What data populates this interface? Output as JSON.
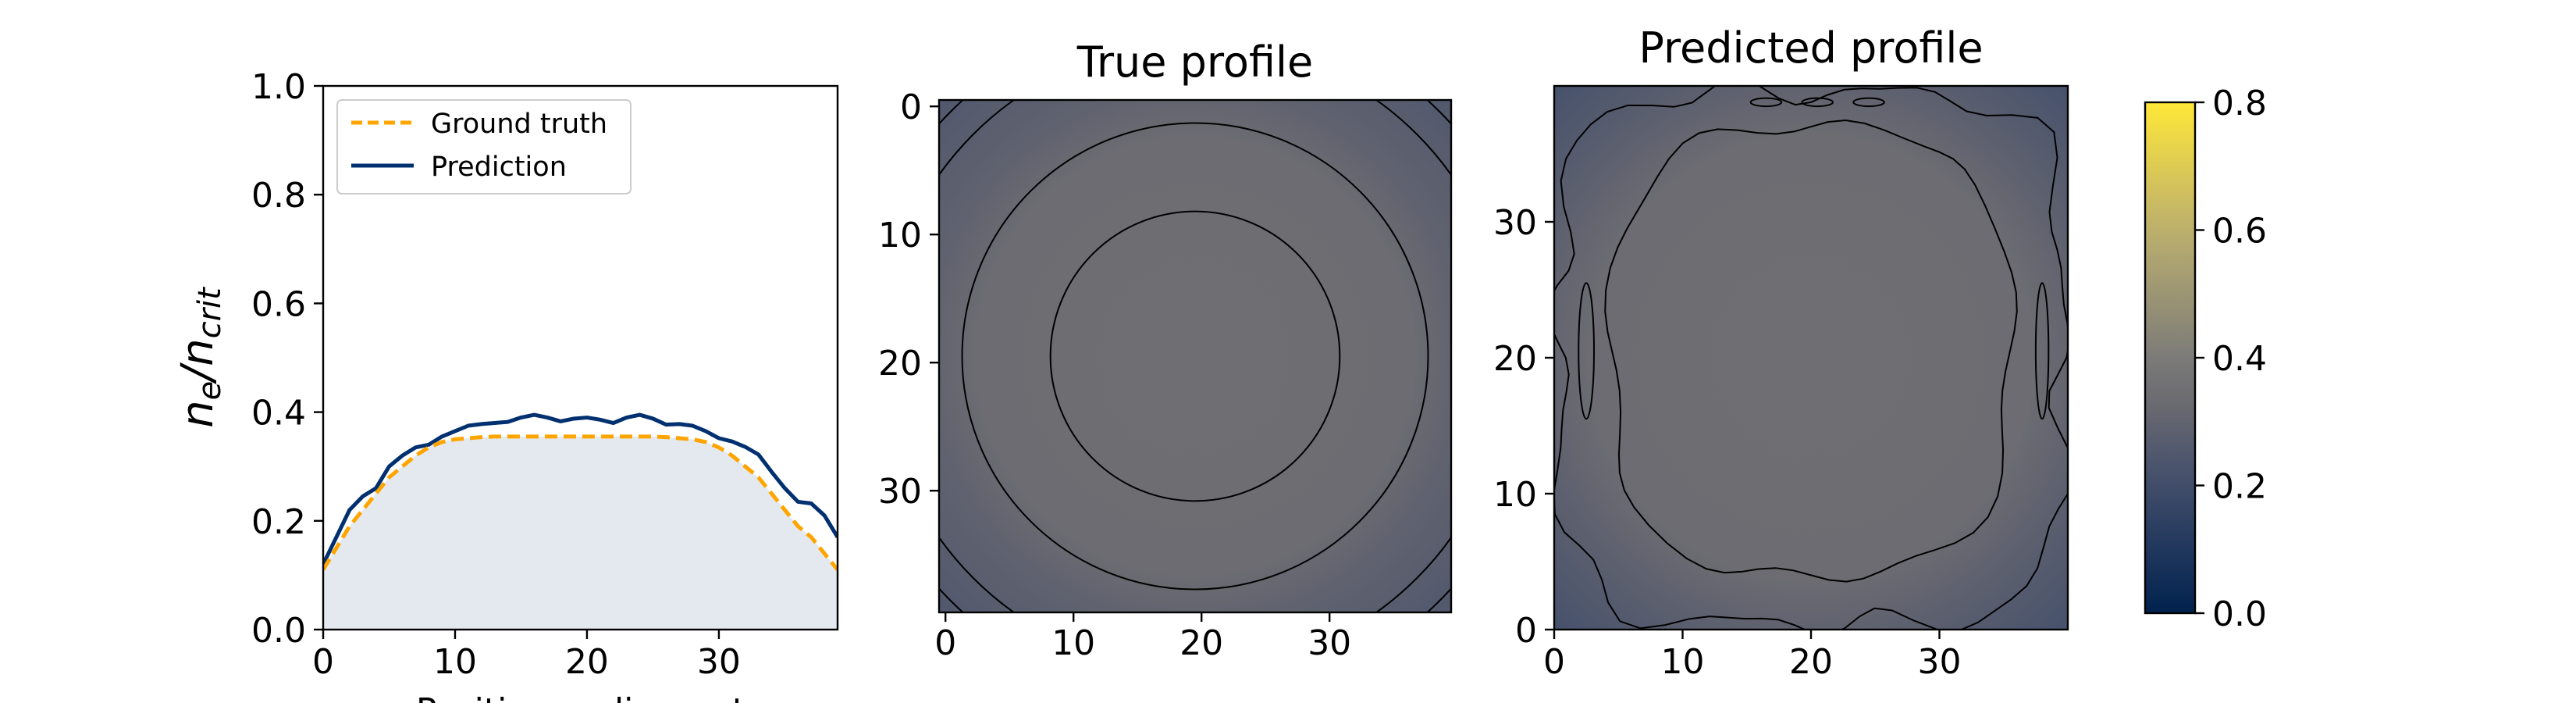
{
  "chart_data": [
    {
      "type": "area",
      "xlabel": "Position on line-out",
      "ylabel_base": "n",
      "ylabel_sub1": "e",
      "ylabel_slash": "/n",
      "ylabel_sub2": "crit",
      "xlim": [
        0,
        39
      ],
      "ylim": [
        0,
        1.0
      ],
      "xticks": [
        "0",
        "10",
        "20",
        "30"
      ],
      "yticks": [
        "0.0",
        "0.2",
        "0.4",
        "0.6",
        "0.8",
        "1.0"
      ],
      "legend_position": "top-left",
      "series": [
        {
          "name": "Ground truth",
          "style": "dashed",
          "color": "#ffa500",
          "x": [
            0,
            1,
            2,
            3,
            4,
            5,
            6,
            7,
            8,
            9,
            10,
            11,
            12,
            13,
            14,
            15,
            16,
            17,
            18,
            19,
            20,
            21,
            22,
            23,
            24,
            25,
            26,
            27,
            28,
            29,
            30,
            31,
            32,
            33,
            34,
            35,
            36,
            37,
            38,
            39
          ],
          "values": [
            0.11,
            0.15,
            0.19,
            0.22,
            0.25,
            0.28,
            0.3,
            0.32,
            0.335,
            0.345,
            0.35,
            0.352,
            0.354,
            0.355,
            0.355,
            0.355,
            0.355,
            0.355,
            0.355,
            0.355,
            0.355,
            0.355,
            0.355,
            0.355,
            0.355,
            0.355,
            0.354,
            0.352,
            0.35,
            0.345,
            0.335,
            0.32,
            0.3,
            0.28,
            0.25,
            0.22,
            0.19,
            0.17,
            0.14,
            0.11
          ]
        },
        {
          "name": "Prediction",
          "style": "solid",
          "color": "#00306f",
          "x": [
            0,
            1,
            2,
            3,
            4,
            5,
            6,
            7,
            8,
            9,
            10,
            11,
            12,
            13,
            14,
            15,
            16,
            17,
            18,
            19,
            20,
            21,
            22,
            23,
            24,
            25,
            26,
            27,
            28,
            29,
            30,
            31,
            32,
            33,
            34,
            35,
            36,
            37,
            38,
            39
          ],
          "values": [
            0.12,
            0.17,
            0.22,
            0.245,
            0.26,
            0.3,
            0.32,
            0.335,
            0.34,
            0.355,
            0.365,
            0.375,
            0.378,
            0.38,
            0.382,
            0.39,
            0.395,
            0.39,
            0.383,
            0.388,
            0.39,
            0.386,
            0.38,
            0.39,
            0.395,
            0.388,
            0.377,
            0.378,
            0.375,
            0.365,
            0.352,
            0.346,
            0.336,
            0.322,
            0.29,
            0.26,
            0.235,
            0.232,
            0.21,
            0.17
          ]
        }
      ]
    },
    {
      "type": "heatmap",
      "title": "True profile",
      "xticks": [
        "0",
        "10",
        "20",
        "30"
      ],
      "yticks": [
        "0",
        "10",
        "20",
        "30"
      ],
      "grid_size": 40,
      "origin": "upper",
      "center_value": 0.35,
      "edge_value": 0.3,
      "corner_value": 0.25,
      "contour_levels": [
        0.3,
        0.33,
        0.35
      ]
    },
    {
      "type": "heatmap",
      "title": "Predicted profile",
      "xticks": [
        "0",
        "10",
        "20",
        "30"
      ],
      "yticks": [
        "0",
        "10",
        "20",
        "30"
      ],
      "grid_size": 40,
      "origin": "lower",
      "center_value": 0.35,
      "edge_value": 0.3,
      "corner_value": 0.22,
      "contour_levels": [
        0.3,
        0.33,
        0.35
      ]
    },
    {
      "type": "colorbar",
      "colormap": "cividis",
      "range": [
        0.0,
        0.8
      ],
      "ticks": [
        "0.0",
        "0.2",
        "0.4",
        "0.6",
        "0.8"
      ]
    }
  ]
}
